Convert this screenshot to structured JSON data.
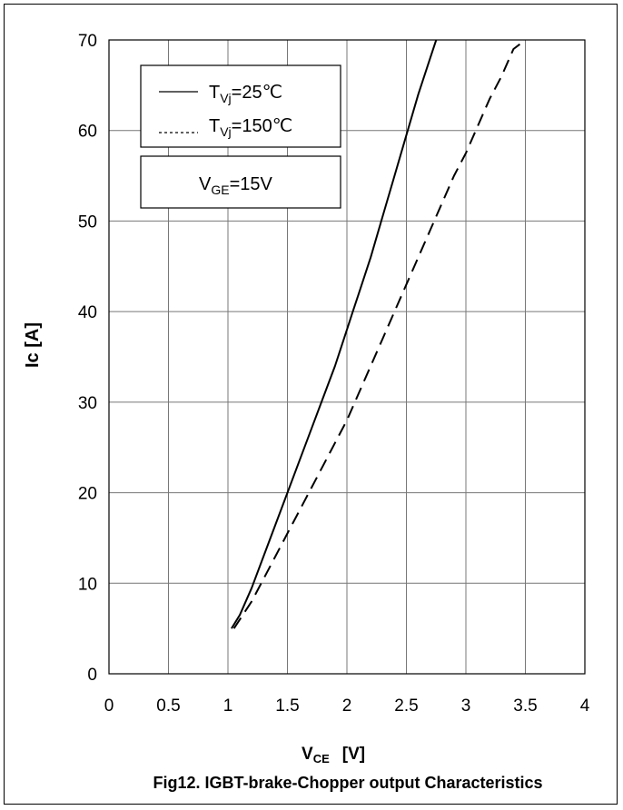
{
  "chart_data": {
    "type": "line",
    "title": "Fig12. IGBT-brake-Chopper output Characteristics",
    "xlabel": {
      "main": "V",
      "sub": "CE",
      "unit": "[V]"
    },
    "ylabel": "Ic  [A]",
    "xlim": [
      0,
      4
    ],
    "ylim": [
      0,
      70
    ],
    "x_ticks": [
      "0",
      "0.5",
      "1",
      "1.5",
      "2",
      "2.5",
      "3",
      "3.5",
      "4"
    ],
    "y_ticks": [
      "0",
      "10",
      "20",
      "30",
      "40",
      "50",
      "60",
      "70"
    ],
    "grid": true,
    "legend_position": "top-left",
    "series": [
      {
        "name": "T_Vj=25℃",
        "legend_parts": {
          "main": "T",
          "sub": "Vj",
          "rest": "=25℃"
        },
        "style": "solid",
        "x": [
          1.03,
          1.1,
          1.2,
          1.3,
          1.4,
          1.5,
          1.6,
          1.7,
          1.8,
          1.9,
          2.0,
          2.05,
          2.1,
          2.2,
          2.3,
          2.4,
          2.5,
          2.6,
          2.7,
          2.75
        ],
        "y": [
          5,
          6.5,
          9.5,
          13,
          16.5,
          20,
          23.5,
          27,
          30.5,
          34,
          38,
          40,
          42,
          46,
          50.5,
          55,
          59.5,
          64,
          68,
          70
        ]
      },
      {
        "name": "T_Vj=150℃",
        "legend_parts": {
          "main": "T",
          "sub": "Vj",
          "rest": "=150℃"
        },
        "style": "dashed",
        "x": [
          1.05,
          1.1,
          1.2,
          1.3,
          1.4,
          1.5,
          1.6,
          1.7,
          1.8,
          1.9,
          2.0,
          2.1,
          2.2,
          2.3,
          2.4,
          2.5,
          2.6,
          2.7,
          2.8,
          2.9,
          3.0,
          3.1,
          3.2,
          3.3,
          3.4,
          3.5
        ],
        "y": [
          5,
          6,
          8,
          10.5,
          13,
          15.5,
          18,
          20.5,
          23,
          25.5,
          28,
          31,
          34,
          37,
          40,
          43,
          46,
          49,
          52,
          55,
          57.5,
          60.5,
          63.5,
          66,
          69,
          71
        ]
      }
    ],
    "annotation": {
      "main": "V",
      "sub": "GE",
      "rest": "=15V"
    }
  }
}
